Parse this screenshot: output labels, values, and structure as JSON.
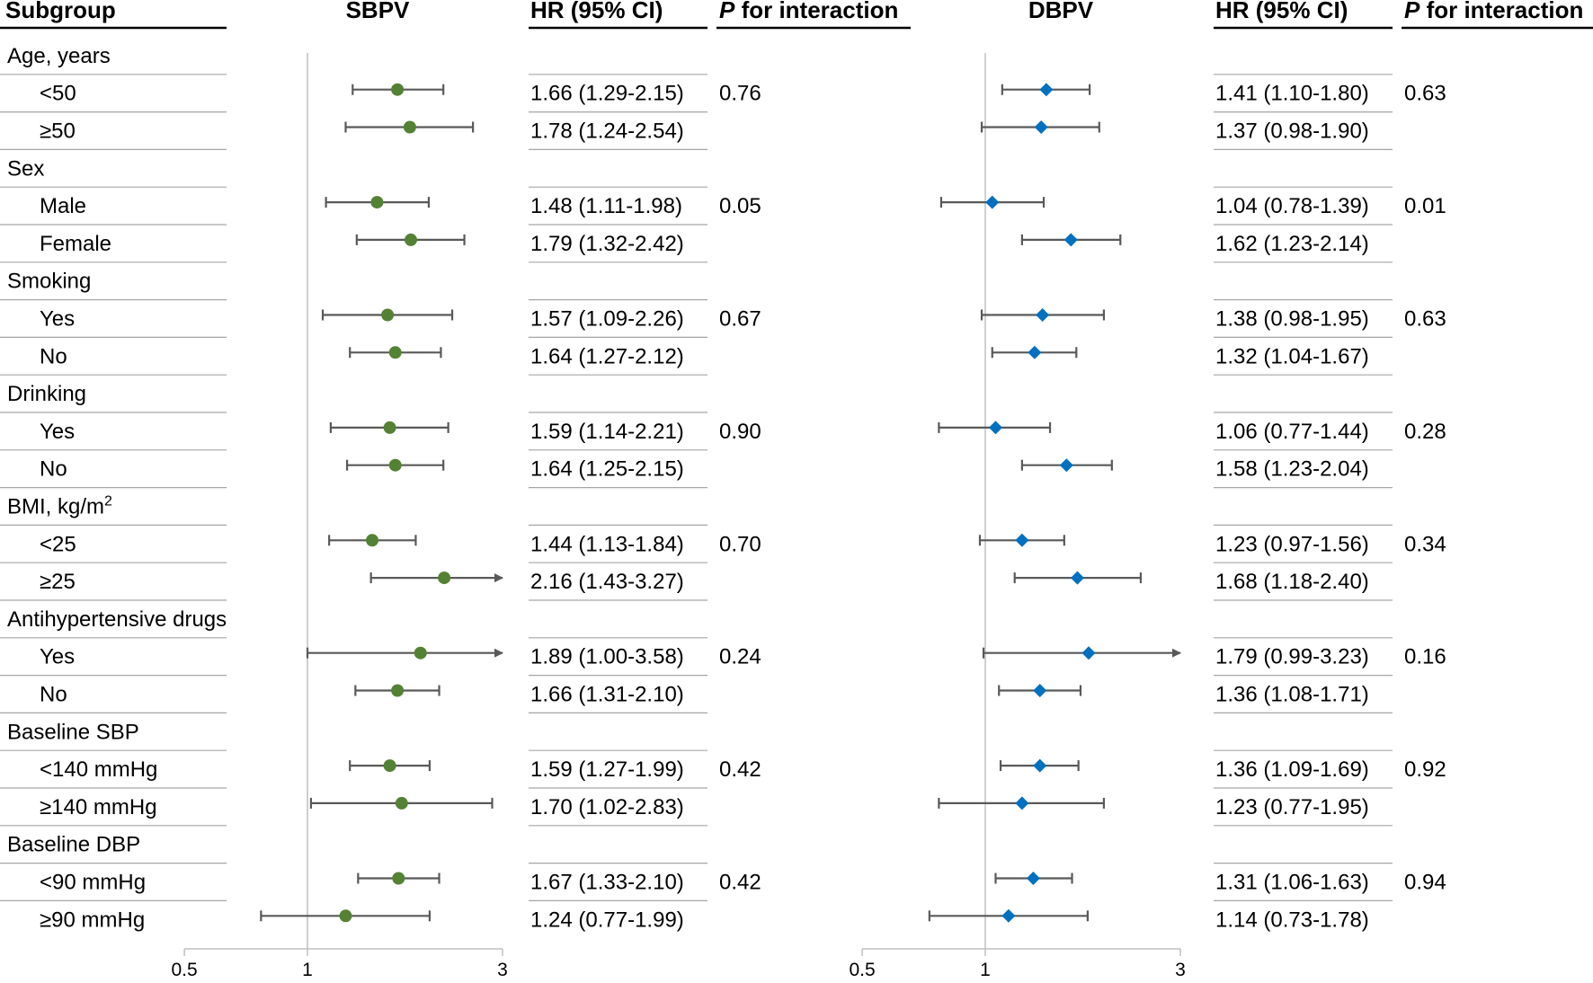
{
  "headers": {
    "subgroup": "Subgroup",
    "sbpv": "SBPV",
    "hr": "HR (95% CI)",
    "p_italic": "P",
    "p_rest": " for interaction",
    "dbpv": "DBPV"
  },
  "rows": [
    {
      "label": "Age, years",
      "type": "group"
    },
    {
      "label": "<50",
      "type": "sub"
    },
    {
      "label": "≥50",
      "type": "sub"
    },
    {
      "label": "Sex",
      "type": "group"
    },
    {
      "label": "Male",
      "type": "sub"
    },
    {
      "label": "Female",
      "type": "sub"
    },
    {
      "label": "Smoking",
      "type": "group"
    },
    {
      "label": "Yes",
      "type": "sub"
    },
    {
      "label": "No",
      "type": "sub"
    },
    {
      "label": "Drinking",
      "type": "group"
    },
    {
      "label": "Yes",
      "type": "sub"
    },
    {
      "label": "No",
      "type": "sub"
    },
    {
      "label": "BMI, kg/m",
      "sup": "2",
      "type": "group"
    },
    {
      "label": "<25",
      "type": "sub"
    },
    {
      "label": "≥25",
      "type": "sub"
    },
    {
      "label": "Antihypertensive drugs",
      "type": "group"
    },
    {
      "label": "Yes",
      "type": "sub"
    },
    {
      "label": "No",
      "type": "sub"
    },
    {
      "label": "Baseline SBP",
      "type": "group"
    },
    {
      "label": "<140 mmHg",
      "type": "sub"
    },
    {
      "label": "≥140 mmHg",
      "type": "sub"
    },
    {
      "label": "Baseline DBP",
      "type": "group"
    },
    {
      "label": "<90 mmHg",
      "type": "sub"
    },
    {
      "label": "≥90 mmHg",
      "type": "sub"
    }
  ],
  "chart_data": [
    {
      "type": "forest",
      "title": "SBPV",
      "x_ticks": [
        "0.5",
        "1",
        "3"
      ],
      "xlim": [
        0.5,
        3
      ],
      "reference_line": 1,
      "marker": "circle",
      "marker_color": "#548235",
      "series": [
        {
          "row": 1,
          "hr": 1.66,
          "lo": 1.29,
          "hi": 2.15,
          "text": "1.66 (1.29-2.15)",
          "p": "0.76"
        },
        {
          "row": 2,
          "hr": 1.78,
          "lo": 1.24,
          "hi": 2.54,
          "text": "1.78 (1.24-2.54)",
          "p": ""
        },
        {
          "row": 4,
          "hr": 1.48,
          "lo": 1.11,
          "hi": 1.98,
          "text": "1.48 (1.11-1.98)",
          "p": "0.05"
        },
        {
          "row": 5,
          "hr": 1.79,
          "lo": 1.32,
          "hi": 2.42,
          "text": "1.79 (1.32-2.42)",
          "p": ""
        },
        {
          "row": 7,
          "hr": 1.57,
          "lo": 1.09,
          "hi": 2.26,
          "text": "1.57 (1.09-2.26)",
          "p": "0.67"
        },
        {
          "row": 8,
          "hr": 1.64,
          "lo": 1.27,
          "hi": 2.12,
          "text": "1.64 (1.27-2.12)",
          "p": ""
        },
        {
          "row": 10,
          "hr": 1.59,
          "lo": 1.14,
          "hi": 2.21,
          "text": "1.59 (1.14-2.21)",
          "p": "0.90"
        },
        {
          "row": 11,
          "hr": 1.64,
          "lo": 1.25,
          "hi": 2.15,
          "text": "1.64 (1.25-2.15)",
          "p": ""
        },
        {
          "row": 13,
          "hr": 1.44,
          "lo": 1.13,
          "hi": 1.84,
          "text": "1.44 (1.13-1.84)",
          "p": "0.70"
        },
        {
          "row": 14,
          "hr": 2.16,
          "lo": 1.43,
          "hi": 3.27,
          "text": "2.16 (1.43-3.27)",
          "p": ""
        },
        {
          "row": 16,
          "hr": 1.89,
          "lo": 1.0,
          "hi": 3.58,
          "text": "1.89 (1.00-3.58)",
          "p": "0.24"
        },
        {
          "row": 17,
          "hr": 1.66,
          "lo": 1.31,
          "hi": 2.1,
          "text": "1.66 (1.31-2.10)",
          "p": ""
        },
        {
          "row": 19,
          "hr": 1.59,
          "lo": 1.27,
          "hi": 1.99,
          "text": "1.59 (1.27-1.99)",
          "p": "0.42"
        },
        {
          "row": 20,
          "hr": 1.7,
          "lo": 1.02,
          "hi": 2.83,
          "text": "1.70 (1.02-2.83)",
          "p": ""
        },
        {
          "row": 22,
          "hr": 1.67,
          "lo": 1.33,
          "hi": 2.1,
          "text": "1.67 (1.33-2.10)",
          "p": "0.42"
        },
        {
          "row": 23,
          "hr": 1.24,
          "lo": 0.77,
          "hi": 1.99,
          "text": "1.24 (0.77-1.99)",
          "p": ""
        }
      ]
    },
    {
      "type": "forest",
      "title": "DBPV",
      "x_ticks": [
        "0.5",
        "1",
        "3"
      ],
      "xlim": [
        0.5,
        3
      ],
      "reference_line": 1,
      "marker": "diamond",
      "marker_color": "#0070c0",
      "series": [
        {
          "row": 1,
          "hr": 1.41,
          "lo": 1.1,
          "hi": 1.8,
          "text": "1.41 (1.10-1.80)",
          "p": "0.63"
        },
        {
          "row": 2,
          "hr": 1.37,
          "lo": 0.98,
          "hi": 1.9,
          "text": "1.37 (0.98-1.90)",
          "p": ""
        },
        {
          "row": 4,
          "hr": 1.04,
          "lo": 0.78,
          "hi": 1.39,
          "text": "1.04 (0.78-1.39)",
          "p": "0.01"
        },
        {
          "row": 5,
          "hr": 1.62,
          "lo": 1.23,
          "hi": 2.14,
          "text": "1.62 (1.23-2.14)",
          "p": ""
        },
        {
          "row": 7,
          "hr": 1.38,
          "lo": 0.98,
          "hi": 1.95,
          "text": "1.38 (0.98-1.95)",
          "p": "0.63"
        },
        {
          "row": 8,
          "hr": 1.32,
          "lo": 1.04,
          "hi": 1.67,
          "text": "1.32 (1.04-1.67)",
          "p": ""
        },
        {
          "row": 10,
          "hr": 1.06,
          "lo": 0.77,
          "hi": 1.44,
          "text": "1.06 (0.77-1.44)",
          "p": "0.28"
        },
        {
          "row": 11,
          "hr": 1.58,
          "lo": 1.23,
          "hi": 2.04,
          "text": "1.58 (1.23-2.04)",
          "p": ""
        },
        {
          "row": 13,
          "hr": 1.23,
          "lo": 0.97,
          "hi": 1.56,
          "text": "1.23 (0.97-1.56)",
          "p": "0.34"
        },
        {
          "row": 14,
          "hr": 1.68,
          "lo": 1.18,
          "hi": 2.4,
          "text": "1.68 (1.18-2.40)",
          "p": ""
        },
        {
          "row": 16,
          "hr": 1.79,
          "lo": 0.99,
          "hi": 3.23,
          "text": "1.79 (0.99-3.23)",
          "p": "0.16"
        },
        {
          "row": 17,
          "hr": 1.36,
          "lo": 1.08,
          "hi": 1.71,
          "text": "1.36 (1.08-1.71)",
          "p": ""
        },
        {
          "row": 19,
          "hr": 1.36,
          "lo": 1.09,
          "hi": 1.69,
          "text": "1.36 (1.09-1.69)",
          "p": "0.92"
        },
        {
          "row": 20,
          "hr": 1.23,
          "lo": 0.77,
          "hi": 1.95,
          "text": "1.23 (0.77-1.95)",
          "p": ""
        },
        {
          "row": 22,
          "hr": 1.31,
          "lo": 1.06,
          "hi": 1.63,
          "text": "1.31 (1.06-1.63)",
          "p": "0.94"
        },
        {
          "row": 23,
          "hr": 1.14,
          "lo": 0.73,
          "hi": 1.78,
          "text": "1.14 (0.73-1.78)",
          "p": ""
        }
      ]
    }
  ]
}
